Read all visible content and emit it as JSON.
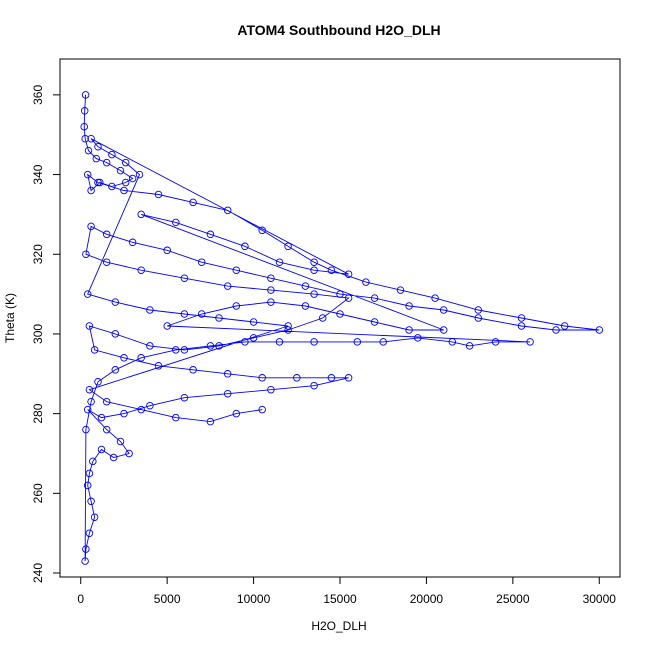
{
  "chart_data": {
    "type": "scatter",
    "title": "ATOM4 Southbound H2O_DLH",
    "xlabel": "H2O_DLH",
    "ylabel": "Theta (K)",
    "xlim": [
      -1200,
      31200
    ],
    "ylim": [
      239,
      369
    ],
    "x_ticks": [
      0,
      5000,
      10000,
      15000,
      20000,
      25000,
      30000
    ],
    "y_ticks": [
      240,
      260,
      280,
      300,
      320,
      340,
      360
    ],
    "grid": false,
    "legend": "none",
    "marker": "open-circle",
    "connected": true,
    "color": "#0000ff",
    "series": [
      {
        "points": [
          [
            280,
            360
          ],
          [
            230,
            356
          ],
          [
            200,
            352
          ],
          [
            260,
            349
          ],
          [
            450,
            346
          ],
          [
            900,
            344
          ],
          [
            1500,
            343
          ],
          [
            2300,
            341
          ],
          [
            3000,
            339
          ],
          [
            2600,
            338
          ],
          [
            1800,
            337
          ],
          [
            1100,
            338
          ],
          [
            600,
            336
          ],
          [
            400,
            340
          ],
          [
            1000,
            338
          ],
          [
            2500,
            336
          ],
          [
            4500,
            335
          ],
          [
            6500,
            333
          ],
          [
            8500,
            331
          ],
          [
            10500,
            326
          ],
          [
            12000,
            322
          ],
          [
            13500,
            318
          ],
          [
            14500,
            316
          ],
          [
            16500,
            313
          ],
          [
            18500,
            311
          ],
          [
            20500,
            309
          ],
          [
            23000,
            306
          ],
          [
            25500,
            304
          ],
          [
            28000,
            302
          ],
          [
            30000,
            301
          ],
          [
            27500,
            301
          ],
          [
            25500,
            302
          ],
          [
            23000,
            304
          ],
          [
            21000,
            306
          ],
          [
            19000,
            307
          ],
          [
            17000,
            309
          ],
          [
            15000,
            310
          ],
          [
            13000,
            312
          ],
          [
            11000,
            314
          ],
          [
            9000,
            316
          ],
          [
            7000,
            318
          ],
          [
            5000,
            321
          ],
          [
            3000,
            323
          ],
          [
            1500,
            325
          ],
          [
            600,
            327
          ],
          [
            300,
            320
          ],
          [
            1500,
            318
          ],
          [
            3500,
            316
          ],
          [
            6000,
            314
          ],
          [
            8500,
            312
          ],
          [
            11000,
            311
          ],
          [
            13500,
            310
          ],
          [
            15500,
            309
          ],
          [
            14000,
            304
          ],
          [
            12000,
            301
          ],
          [
            10000,
            299
          ],
          [
            8000,
            297
          ],
          [
            6000,
            296
          ],
          [
            4000,
            297
          ],
          [
            2000,
            300
          ],
          [
            500,
            302
          ],
          [
            800,
            296
          ],
          [
            2500,
            294
          ],
          [
            4500,
            292
          ],
          [
            6500,
            291
          ],
          [
            8500,
            290
          ],
          [
            10500,
            289
          ],
          [
            12500,
            289
          ],
          [
            14500,
            289
          ],
          [
            15500,
            289
          ],
          [
            13500,
            287
          ],
          [
            11000,
            286
          ],
          [
            8500,
            285
          ],
          [
            6000,
            284
          ],
          [
            4000,
            282
          ],
          [
            2500,
            280
          ],
          [
            1200,
            279
          ],
          [
            400,
            281
          ],
          [
            1500,
            276
          ],
          [
            2300,
            273
          ],
          [
            2800,
            270
          ],
          [
            1900,
            269
          ],
          [
            1200,
            271
          ],
          [
            700,
            268
          ],
          [
            500,
            265
          ],
          [
            400,
            262
          ],
          [
            600,
            258
          ],
          [
            800,
            254
          ],
          [
            500,
            250
          ],
          [
            300,
            246
          ],
          [
            250,
            243
          ],
          [
            300,
            276
          ],
          [
            600,
            283
          ],
          [
            1000,
            288
          ],
          [
            2000,
            291
          ],
          [
            3500,
            294
          ],
          [
            5500,
            296
          ],
          [
            7500,
            297
          ],
          [
            9500,
            298
          ],
          [
            11500,
            298
          ],
          [
            13500,
            298
          ],
          [
            16000,
            298
          ],
          [
            17500,
            298
          ],
          [
            19500,
            299
          ],
          [
            21500,
            298
          ],
          [
            22500,
            297
          ],
          [
            24000,
            298
          ],
          [
            26000,
            298
          ],
          [
            5000,
            302
          ],
          [
            7000,
            305
          ],
          [
            9000,
            307
          ],
          [
            11000,
            308
          ],
          [
            13000,
            307
          ],
          [
            15000,
            305
          ],
          [
            17000,
            303
          ],
          [
            19000,
            301
          ],
          [
            21000,
            301
          ],
          [
            3500,
            330
          ],
          [
            5500,
            328
          ],
          [
            7500,
            325
          ],
          [
            9500,
            322
          ],
          [
            11500,
            318
          ],
          [
            13500,
            316
          ],
          [
            15500,
            315
          ],
          [
            600,
            349
          ],
          [
            1000,
            347
          ],
          [
            1800,
            345
          ],
          [
            2600,
            343
          ],
          [
            3400,
            340
          ],
          [
            400,
            310
          ],
          [
            2000,
            308
          ],
          [
            4000,
            306
          ],
          [
            6000,
            305
          ],
          [
            8000,
            304
          ],
          [
            10000,
            303
          ],
          [
            12000,
            302
          ],
          [
            500,
            286
          ],
          [
            1500,
            283
          ],
          [
            3500,
            281
          ],
          [
            5500,
            279
          ],
          [
            7500,
            278
          ],
          [
            9000,
            280
          ],
          [
            10500,
            281
          ]
        ]
      }
    ]
  }
}
